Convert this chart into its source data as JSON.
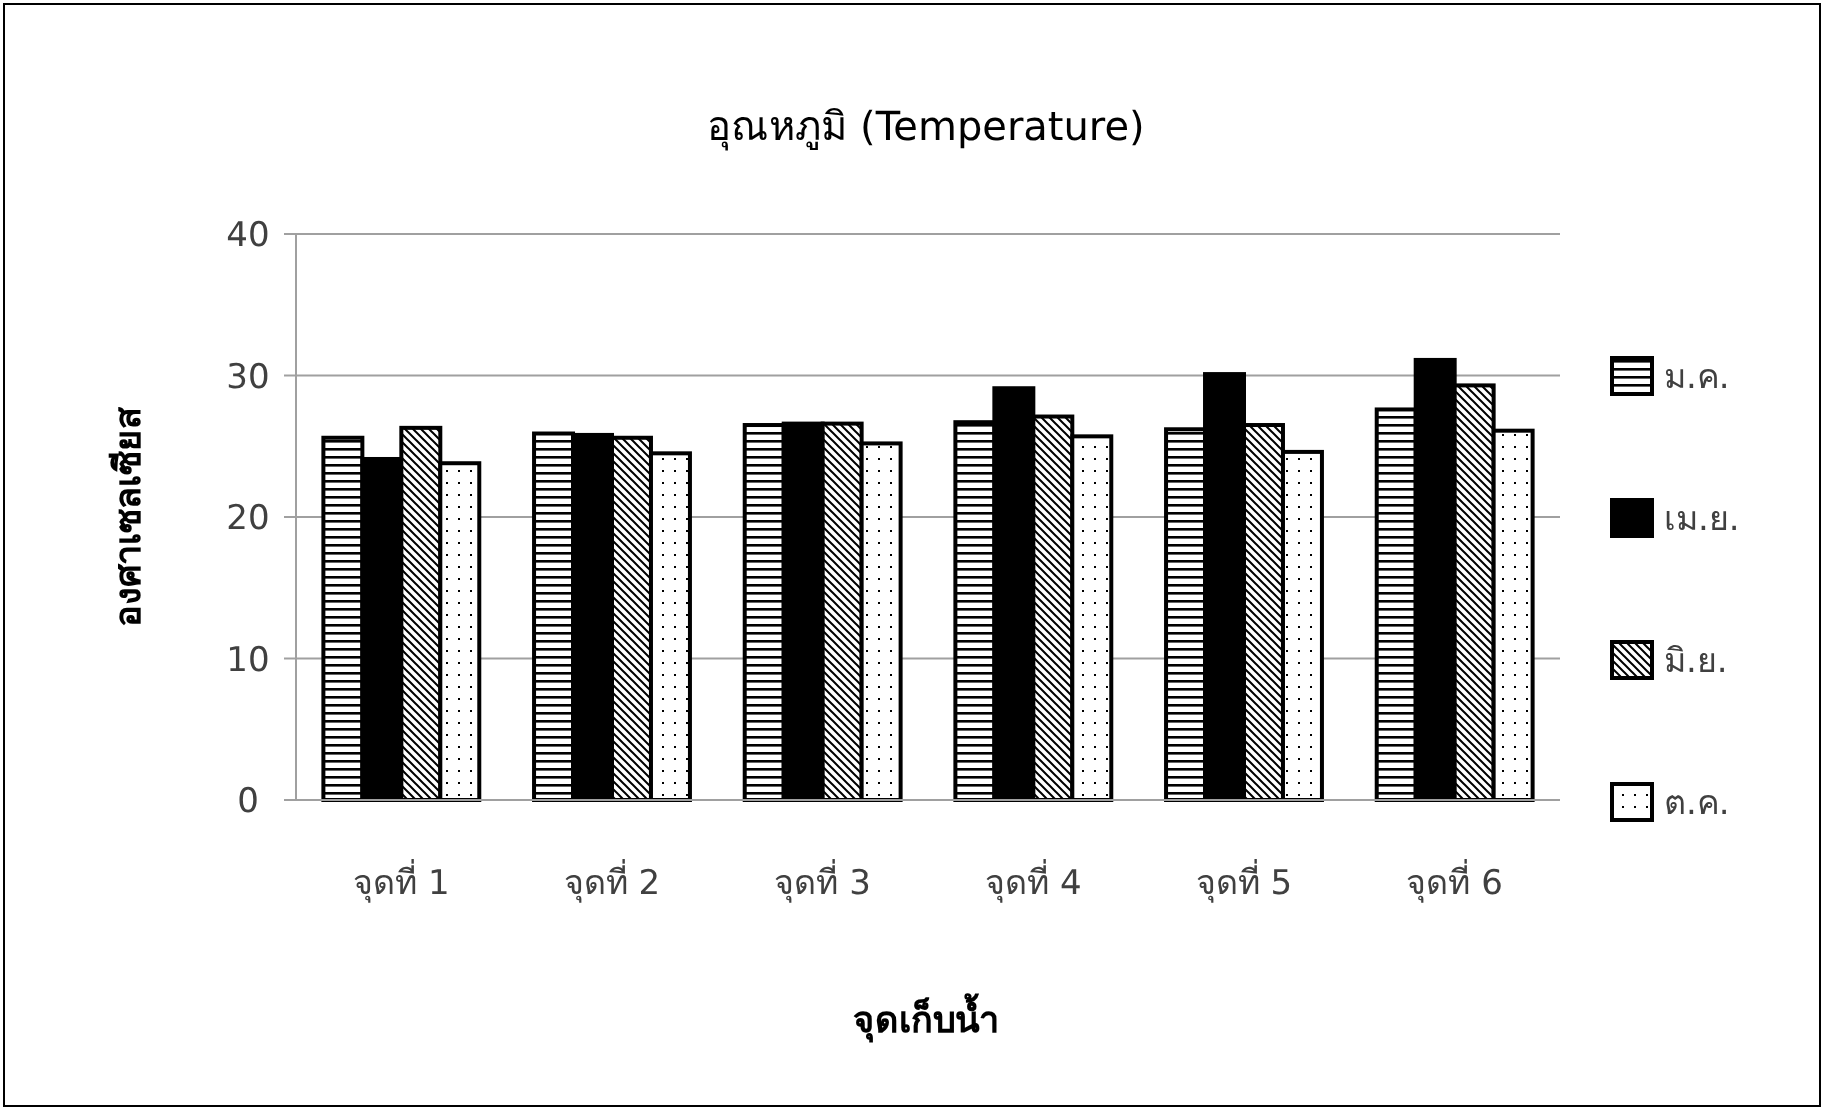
{
  "chart_data": {
    "type": "bar",
    "title": "อุณหภูมิ (Temperature)",
    "xlabel": "จุดเก็บน้ำ",
    "ylabel": "องศาเซลเซียส",
    "categories": [
      "จุดที่ 1",
      "จุดที่ 2",
      "จุดที่ 3",
      "จุดที่ 4",
      "จุดที่ 5",
      "จุดที่ 6"
    ],
    "series": [
      {
        "name": "ม.ค.",
        "color": "#000000",
        "values": [
          25.6,
          25.9,
          26.5,
          26.7,
          26.2,
          27.6
        ]
      },
      {
        "name": "เม.ย.",
        "color": "#000000",
        "values": [
          24.1,
          25.8,
          26.6,
          29.1,
          30.1,
          31.1
        ]
      },
      {
        "name": "มิ.ย.",
        "color": "#000000",
        "values": [
          26.3,
          25.6,
          26.6,
          27.1,
          26.5,
          29.3
        ]
      },
      {
        "name": "ต.ค.",
        "color": "#000000",
        "values": [
          23.8,
          24.5,
          25.2,
          25.7,
          24.6,
          26.1
        ]
      }
    ],
    "ylim": [
      0,
      40
    ],
    "yticks": [
      0,
      10,
      20,
      30,
      40
    ],
    "grid": "y",
    "legend": "right"
  }
}
